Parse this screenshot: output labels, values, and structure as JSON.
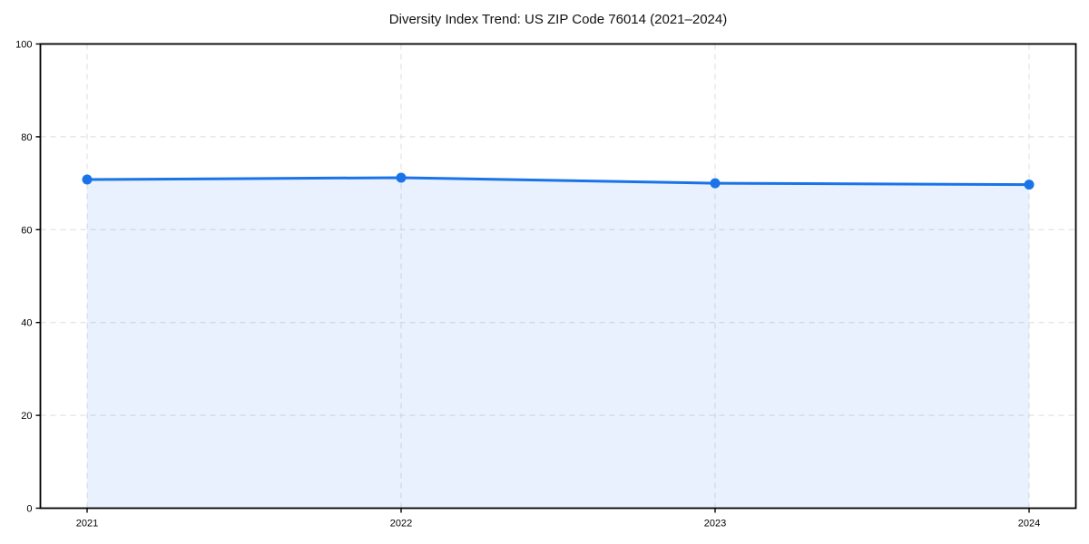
{
  "page": {
    "background": "#ffffff"
  },
  "chart_data": {
    "type": "area",
    "title": "Diversity Index Trend: US ZIP Code 76014 (2021–2024)",
    "categories": [
      "2021",
      "2022",
      "2023",
      "2024"
    ],
    "series": [
      {
        "name": "Diversity Index",
        "values": [
          70.8,
          71.2,
          70.0,
          69.7
        ]
      }
    ],
    "xlabel": "",
    "ylabel": "",
    "ylim": [
      0,
      100
    ],
    "yticks": [
      0,
      20,
      40,
      60,
      80,
      100
    ],
    "grid": "dashed",
    "legend": "none",
    "colors": {
      "line": "#1a73e8",
      "marker": "#1a73e8",
      "fill": "rgba(26,115,232,0.10)",
      "grid": "#dcdcdc",
      "axis": "#000000",
      "text": "#000000"
    }
  }
}
